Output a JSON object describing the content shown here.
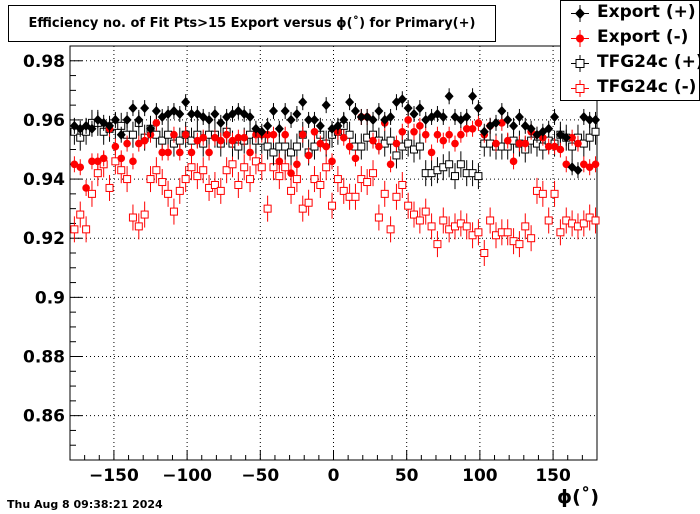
{
  "chart_data": {
    "type": "scatter",
    "title": "Efficiency no. of Fit Pts>15 Export versus ϕ(˚) for Primary(+)",
    "xlabel": "ϕ(˚)",
    "ylabel": "",
    "xlim": [
      -180,
      180
    ],
    "ylim": [
      0.845,
      0.985
    ],
    "xticks": [
      -150,
      -100,
      -50,
      0,
      50,
      100,
      150
    ],
    "xtick_labels": [
      "−150",
      "−100",
      "−50",
      "0",
      "50",
      "100",
      "150"
    ],
    "yticks": [
      0.86,
      0.88,
      0.9,
      0.92,
      0.94,
      0.96,
      0.98
    ],
    "ytick_labels": [
      "0.86",
      "0.88",
      "0.9",
      "0.92",
      "0.94",
      "0.96",
      "0.98"
    ],
    "grid": true,
    "legend_position": "top-right",
    "x": [
      -177,
      -173,
      -169,
      -165,
      -161,
      -157,
      -153,
      -149,
      -145,
      -141,
      -137,
      -133,
      -129,
      -125,
      -121,
      -117,
      -113,
      -109,
      -105,
      -101,
      -97,
      -93,
      -89,
      -85,
      -81,
      -77,
      -73,
      -69,
      -65,
      -61,
      -57,
      -53,
      -49,
      -45,
      -41,
      -37,
      -33,
      -29,
      -25,
      -21,
      -17,
      -13,
      -9,
      -5,
      -1,
      3,
      7,
      11,
      15,
      19,
      23,
      27,
      31,
      35,
      39,
      43,
      47,
      51,
      55,
      59,
      63,
      67,
      71,
      75,
      79,
      83,
      87,
      91,
      95,
      99,
      103,
      107,
      111,
      115,
      119,
      123,
      127,
      131,
      135,
      139,
      143,
      147,
      151,
      155,
      159,
      163,
      167,
      171,
      175,
      179
    ],
    "series": [
      {
        "name": "Export (+)",
        "marker": "filled-diamond",
        "color": "#000000",
        "values": [
          0.958,
          0.957,
          0.958,
          0.957,
          0.96,
          0.959,
          0.958,
          0.96,
          0.955,
          0.96,
          0.964,
          0.96,
          0.964,
          0.957,
          0.963,
          0.961,
          0.962,
          0.963,
          0.962,
          0.966,
          0.962,
          0.962,
          0.961,
          0.96,
          0.962,
          0.959,
          0.961,
          0.962,
          0.963,
          0.962,
          0.961,
          0.957,
          0.956,
          0.958,
          0.963,
          0.957,
          0.963,
          0.96,
          0.962,
          0.966,
          0.96,
          0.96,
          0.958,
          0.965,
          0.957,
          0.958,
          0.96,
          0.966,
          0.963,
          0.961,
          0.961,
          0.96,
          0.963,
          0.96,
          0.961,
          0.966,
          0.967,
          0.964,
          0.962,
          0.964,
          0.96,
          0.961,
          0.962,
          0.961,
          0.968,
          0.961,
          0.96,
          0.961,
          0.968,
          0.964,
          0.956,
          0.958,
          0.959,
          0.963,
          0.96,
          0.958,
          0.961,
          0.958,
          0.957,
          0.955,
          0.956,
          0.957,
          0.961,
          0.955,
          0.954,
          0.944,
          0.943,
          0.961,
          0.96,
          0.96
        ]
      },
      {
        "name": "Export (-)",
        "marker": "filled-circle",
        "color": "#ff0000",
        "values": [
          0.945,
          0.944,
          0.937,
          0.946,
          0.946,
          0.947,
          0.957,
          0.951,
          0.947,
          0.952,
          0.946,
          0.952,
          0.953,
          0.955,
          0.959,
          0.949,
          0.949,
          0.955,
          0.949,
          0.955,
          0.949,
          0.953,
          0.954,
          0.949,
          0.954,
          0.953,
          0.955,
          0.953,
          0.954,
          0.954,
          0.949,
          0.955,
          0.955,
          0.955,
          0.955,
          0.946,
          0.955,
          0.942,
          0.945,
          0.955,
          0.948,
          0.956,
          0.952,
          0.951,
          0.946,
          0.956,
          0.954,
          0.951,
          0.947,
          0.961,
          0.961,
          0.953,
          0.951,
          0.959,
          0.945,
          0.952,
          0.956,
          0.96,
          0.956,
          0.958,
          0.955,
          0.949,
          0.955,
          0.953,
          0.955,
          0.952,
          0.955,
          0.957,
          0.957,
          0.959,
          0.955,
          0.958,
          0.952,
          0.959,
          0.953,
          0.946,
          0.952,
          0.952,
          0.956,
          0.955,
          0.954,
          0.951,
          0.951,
          0.95,
          0.945,
          0.954,
          0.952,
          0.945,
          0.944,
          0.945
        ]
      },
      {
        "name": "TFG24c (+)",
        "marker": "open-square",
        "color": "#000000",
        "values": [
          0.956,
          0.954,
          0.956,
          0.959,
          0.959,
          0.956,
          0.957,
          0.958,
          0.958,
          0.955,
          0.955,
          0.959,
          0.954,
          0.957,
          0.955,
          0.953,
          0.955,
          0.952,
          0.953,
          0.955,
          0.953,
          0.955,
          0.952,
          0.955,
          0.955,
          0.952,
          0.956,
          0.952,
          0.951,
          0.953,
          0.955,
          0.953,
          0.953,
          0.951,
          0.949,
          0.951,
          0.951,
          0.949,
          0.951,
          0.955,
          0.949,
          0.951,
          0.955,
          0.952,
          0.955,
          0.956,
          0.958,
          0.955,
          0.951,
          0.951,
          0.954,
          0.955,
          0.953,
          0.952,
          0.953,
          0.948,
          0.951,
          0.952,
          0.95,
          0.951,
          0.942,
          0.942,
          0.943,
          0.944,
          0.945,
          0.941,
          0.945,
          0.942,
          0.942,
          0.941,
          0.952,
          0.952,
          0.951,
          0.951,
          0.951,
          0.953,
          0.952,
          0.95,
          0.953,
          0.952,
          0.951,
          0.953,
          0.952,
          0.955,
          0.954,
          0.951,
          0.954,
          0.952,
          0.954,
          0.956
        ]
      },
      {
        "name": "TFG24c (-)",
        "marker": "open-square",
        "color": "#ff0000",
        "values": [
          0.923,
          0.928,
          0.923,
          0.935,
          0.942,
          0.945,
          0.937,
          0.946,
          0.943,
          0.94,
          0.927,
          0.924,
          0.928,
          0.94,
          0.943,
          0.939,
          0.935,
          0.929,
          0.936,
          0.94,
          0.944,
          0.941,
          0.943,
          0.937,
          0.938,
          0.936,
          0.943,
          0.945,
          0.938,
          0.944,
          0.94,
          0.946,
          0.944,
          0.93,
          0.944,
          0.941,
          0.944,
          0.936,
          0.94,
          0.93,
          0.932,
          0.94,
          0.938,
          0.944,
          0.931,
          0.94,
          0.936,
          0.934,
          0.934,
          0.94,
          0.939,
          0.942,
          0.927,
          0.935,
          0.923,
          0.934,
          0.938,
          0.931,
          0.928,
          0.926,
          0.929,
          0.924,
          0.918,
          0.926,
          0.923,
          0.924,
          0.925,
          0.924,
          0.921,
          0.922,
          0.915,
          0.926,
          0.921,
          0.922,
          0.922,
          0.919,
          0.918,
          0.924,
          0.92,
          0.936,
          0.935,
          0.926,
          0.935,
          0.922,
          0.926,
          0.925,
          0.924,
          0.925,
          0.927,
          0.926
        ]
      }
    ]
  },
  "footer": {
    "timestamp": "Thu Aug  8 09:38:21 2024"
  }
}
